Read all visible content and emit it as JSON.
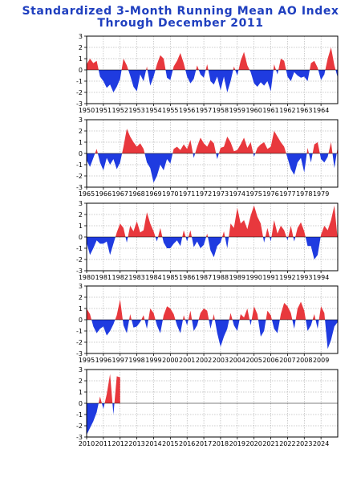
{
  "header": {
    "title_line1": "Standardized 3-Month Running Mean AO Index",
    "title_line2": "Through December 2011"
  },
  "colors": {
    "positive": "#e8383d",
    "negative": "#1f3be0",
    "title": "#1f3fbf"
  },
  "chart_data": [
    {
      "type": "area",
      "title": "Standardized 3-Month Running Mean AO Index Through December 2011",
      "xlim": [
        1950,
        1965
      ],
      "ylim": [
        -3,
        3
      ],
      "x_ticks": [
        "1950",
        "1951",
        "1952",
        "1953",
        "1954",
        "1955",
        "1956",
        "1957",
        "1958",
        "1959",
        "1960",
        "1961",
        "1962",
        "1963",
        "1964"
      ],
      "y_ticks": [
        "-3",
        "-2",
        "-1",
        "0",
        "1",
        "2",
        "3"
      ],
      "grid": true,
      "series": [
        {
          "x": [
            1950,
            1950.2,
            1950.4,
            1950.6,
            1950.8,
            1951,
            1951.2,
            1951.4,
            1951.6,
            1951.8,
            1952,
            1952.2,
            1952.4,
            1952.6,
            1952.8,
            1953,
            1953.2,
            1953.4,
            1953.6,
            1953.8,
            1954,
            1954.2,
            1954.4,
            1954.6,
            1954.8,
            1955,
            1955.2,
            1955.4,
            1955.6,
            1955.8,
            1956,
            1956.2,
            1956.4,
            1956.6,
            1956.8,
            1957,
            1957.2,
            1957.4,
            1957.6,
            1957.8,
            1958,
            1958.2,
            1958.4,
            1958.6,
            1958.8,
            1959,
            1959.2,
            1959.4,
            1959.6,
            1959.8,
            1960,
            1960.2,
            1960.4,
            1960.6,
            1960.8,
            1961,
            1961.2,
            1961.4,
            1961.6,
            1961.8,
            1962,
            1962.2,
            1962.4,
            1962.6,
            1962.8,
            1963,
            1963.2,
            1963.4,
            1963.6,
            1963.8,
            1964,
            1964.2,
            1964.4,
            1964.6,
            1964.8,
            1965
          ],
          "y": [
            0.5,
            1.0,
            0.6,
            0.8,
            -0.6,
            -1.0,
            -1.6,
            -1.3,
            -2.0,
            -1.5,
            -0.8,
            1.0,
            0.4,
            -0.5,
            -1.5,
            -1.9,
            -0.4,
            -1.0,
            0.3,
            -1.4,
            -0.6,
            0.5,
            1.3,
            1.0,
            -0.7,
            -0.9,
            0.3,
            0.8,
            1.5,
            0.6,
            -0.6,
            -1.2,
            -0.8,
            0.4,
            -0.4,
            -0.7,
            0.5,
            -1.0,
            -1.3,
            -0.6,
            -1.8,
            -0.6,
            -2.0,
            -1.0,
            0.3,
            -0.5,
            0.8,
            1.6,
            0.4,
            -0.2,
            -1.2,
            -1.5,
            -1.1,
            -1.4,
            -1.0,
            -1.9,
            0.5,
            -0.4,
            1.0,
            0.8,
            -0.6,
            -1.0,
            -0.2,
            -0.5,
            -0.7,
            -0.6,
            -1.0,
            0.6,
            0.8,
            0.2,
            -0.9,
            -0.4,
            1.0,
            2.0,
            0.4,
            -0.7
          ]
        }
      ]
    },
    {
      "type": "area",
      "xlim": [
        1965,
        1980
      ],
      "ylim": [
        -3,
        3
      ],
      "x_ticks": [
        "1965",
        "1966",
        "1967",
        "1968",
        "1969",
        "1970",
        "1971",
        "1972",
        "1973",
        "1974",
        "1975",
        "1976",
        "1977",
        "1978",
        "1979"
      ],
      "y_ticks": [
        "-3",
        "-2",
        "-1",
        "0",
        "1",
        "2",
        "3"
      ],
      "grid": true,
      "series": [
        {
          "x": [
            1965,
            1965.2,
            1965.4,
            1965.6,
            1965.8,
            1966,
            1966.2,
            1966.4,
            1966.6,
            1966.8,
            1967,
            1967.2,
            1967.4,
            1967.6,
            1967.8,
            1968,
            1968.2,
            1968.4,
            1968.6,
            1968.8,
            1969,
            1969.2,
            1969.4,
            1969.6,
            1969.8,
            1970,
            1970.2,
            1970.4,
            1970.6,
            1970.8,
            1971,
            1971.2,
            1971.4,
            1971.6,
            1971.8,
            1972,
            1972.2,
            1972.4,
            1972.6,
            1972.8,
            1973,
            1973.2,
            1973.4,
            1973.6,
            1973.8,
            1974,
            1974.2,
            1974.4,
            1974.6,
            1974.8,
            1975,
            1975.2,
            1975.4,
            1975.6,
            1975.8,
            1976,
            1976.2,
            1976.4,
            1976.6,
            1976.8,
            1977,
            1977.2,
            1977.4,
            1977.6,
            1977.8,
            1978,
            1978.2,
            1978.4,
            1978.6,
            1978.8,
            1979,
            1979.2,
            1979.4,
            1979.6,
            1979.8,
            1980
          ],
          "y": [
            -0.6,
            -1.2,
            -0.4,
            0.4,
            -0.8,
            -1.5,
            -0.4,
            -1.0,
            -0.5,
            -1.4,
            -0.8,
            0.6,
            2.2,
            1.5,
            1.0,
            0.6,
            0.9,
            0.4,
            -0.8,
            -1.3,
            -2.6,
            -2.0,
            -1.0,
            -1.5,
            -0.5,
            -0.9,
            0.4,
            0.6,
            0.3,
            0.8,
            0.4,
            1.2,
            -0.4,
            0.6,
            1.4,
            0.9,
            0.6,
            1.2,
            0.9,
            -0.5,
            0.5,
            0.6,
            1.5,
            1.0,
            0.2,
            0.3,
            0.8,
            1.4,
            0.5,
            1.0,
            -0.3,
            0.5,
            0.8,
            1.0,
            0.4,
            0.6,
            2.0,
            1.5,
            1.0,
            0.6,
            -0.4,
            -1.4,
            -1.9,
            -0.8,
            -0.4,
            -1.7,
            0.5,
            -0.8,
            0.8,
            1.0,
            -0.5,
            -0.8,
            -0.3,
            1.0,
            -1.3,
            0.6
          ]
        }
      ]
    },
    {
      "type": "area",
      "xlim": [
        1980,
        1995
      ],
      "ylim": [
        -3,
        3
      ],
      "x_ticks": [
        "1980",
        "1981",
        "1982",
        "1983",
        "1984",
        "1985",
        "1986",
        "1987",
        "1988",
        "1989",
        "1990",
        "1991",
        "1992",
        "1993",
        "1994"
      ],
      "y_ticks": [
        "-3",
        "-2",
        "-1",
        "0",
        "1",
        "2",
        "3"
      ],
      "grid": true,
      "series": [
        {
          "x": [
            1980,
            1980.2,
            1980.4,
            1980.6,
            1980.8,
            1981,
            1981.2,
            1981.4,
            1981.6,
            1981.8,
            1982,
            1982.2,
            1982.4,
            1982.6,
            1982.8,
            1983,
            1983.2,
            1983.4,
            1983.6,
            1983.8,
            1984,
            1984.2,
            1984.4,
            1984.6,
            1984.8,
            1985,
            1985.2,
            1985.4,
            1985.6,
            1985.8,
            1986,
            1986.2,
            1986.4,
            1986.6,
            1986.8,
            1987,
            1987.2,
            1987.4,
            1987.6,
            1987.8,
            1988,
            1988.2,
            1988.4,
            1988.6,
            1988.8,
            1989,
            1989.2,
            1989.4,
            1989.6,
            1989.8,
            1990,
            1990.2,
            1990.4,
            1990.6,
            1990.8,
            1991,
            1991.2,
            1991.4,
            1991.6,
            1991.8,
            1992,
            1992.2,
            1992.4,
            1992.6,
            1992.8,
            1993,
            1993.2,
            1993.4,
            1993.6,
            1993.8,
            1994,
            1994.2,
            1994.4,
            1994.6,
            1994.8,
            1995
          ],
          "y": [
            -0.5,
            -1.6,
            -1.0,
            -0.3,
            -0.6,
            -0.6,
            -0.4,
            -1.6,
            -0.6,
            0.4,
            1.2,
            0.8,
            -0.5,
            1.0,
            0.5,
            1.4,
            0.4,
            0.6,
            2.2,
            1.2,
            0.5,
            -0.4,
            0.8,
            -0.5,
            -1.0,
            -1.0,
            -0.6,
            -0.3,
            -0.8,
            0.6,
            -0.4,
            0.6,
            -0.9,
            -0.4,
            -1.0,
            -0.7,
            0.3,
            -1.2,
            -1.8,
            -0.8,
            -0.5,
            0.5,
            -1.0,
            1.2,
            0.8,
            2.6,
            1.2,
            1.5,
            0.7,
            1.9,
            2.8,
            1.8,
            1.2,
            -0.5,
            0.8,
            -0.4,
            1.5,
            0.3,
            1.0,
            0.6,
            -0.3,
            1.0,
            -0.4,
            0.8,
            1.3,
            0.5,
            -0.8,
            -0.8,
            -2.0,
            -1.6,
            0.2,
            1.0,
            0.6,
            1.5,
            2.8,
            -0.3
          ]
        }
      ]
    },
    {
      "type": "area",
      "xlim": [
        1995,
        2010
      ],
      "ylim": [
        -3,
        3
      ],
      "x_ticks": [
        "1995",
        "1996",
        "1997",
        "1998",
        "1999",
        "2000",
        "2001",
        "2002",
        "2003",
        "2004",
        "2005",
        "2006",
        "2007",
        "2008",
        "2009"
      ],
      "y_ticks": [
        "-3",
        "-2",
        "-1",
        "0",
        "1",
        "2",
        "3"
      ],
      "grid": true,
      "series": [
        {
          "x": [
            1995,
            1995.2,
            1995.4,
            1995.6,
            1995.8,
            1996,
            1996.2,
            1996.4,
            1996.6,
            1996.8,
            1997,
            1997.2,
            1997.4,
            1997.6,
            1997.8,
            1998,
            1998.2,
            1998.4,
            1998.6,
            1998.8,
            1999,
            1999.2,
            1999.4,
            1999.6,
            1999.8,
            2000,
            2000.2,
            2000.4,
            2000.6,
            2000.8,
            2001,
            2001.2,
            2001.4,
            2001.6,
            2001.8,
            2002,
            2002.2,
            2002.4,
            2002.6,
            2002.8,
            2003,
            2003.2,
            2003.4,
            2003.6,
            2003.8,
            2004,
            2004.2,
            2004.4,
            2004.6,
            2004.8,
            2005,
            2005.2,
            2005.4,
            2005.6,
            2005.8,
            2006,
            2006.2,
            2006.4,
            2006.6,
            2006.8,
            2007,
            2007.2,
            2007.4,
            2007.6,
            2007.8,
            2008,
            2008.2,
            2008.4,
            2008.6,
            2008.8,
            2009,
            2009.2,
            2009.4,
            2009.6,
            2009.8,
            2010
          ],
          "y": [
            1.0,
            0.5,
            -0.6,
            -1.2,
            -0.8,
            -0.6,
            -1.4,
            -1.0,
            -0.4,
            0.4,
            1.8,
            -0.5,
            -1.2,
            0.5,
            -0.7,
            -0.6,
            -0.2,
            0.4,
            -0.8,
            1.0,
            0.6,
            -0.5,
            -1.2,
            0.4,
            1.2,
            1.0,
            0.5,
            -0.5,
            -1.2,
            0.4,
            -0.5,
            0.8,
            -1.0,
            -0.5,
            0.6,
            1.0,
            0.8,
            -0.8,
            0.5,
            -1.2,
            -2.4,
            -1.5,
            -0.8,
            0.6,
            -0.5,
            -1.0,
            0.5,
            0.2,
            1.0,
            -0.5,
            1.2,
            0.5,
            -1.5,
            -1.0,
            0.8,
            0.4,
            -0.8,
            -1.2,
            0.5,
            1.5,
            1.2,
            0.6,
            -0.8,
            1.0,
            1.6,
            0.8,
            -1.0,
            -0.5,
            0.5,
            -0.8,
            1.2,
            0.6,
            -2.6,
            -1.8,
            -0.6,
            -0.2
          ]
        }
      ]
    },
    {
      "type": "area",
      "xlim": [
        2010,
        2025
      ],
      "ylim": [
        -3,
        3
      ],
      "x_ticks": [
        "2010",
        "2011",
        "2012",
        "2013",
        "2014",
        "2015",
        "2016",
        "2017",
        "2018",
        "2019",
        "2020",
        "2021",
        "2022",
        "2023",
        "2024"
      ],
      "y_ticks": [
        "-3",
        "-2",
        "-1",
        "0",
        "1",
        "2",
        "3"
      ],
      "grid": true,
      "series": [
        {
          "x": [
            2010,
            2010.2,
            2010.4,
            2010.6,
            2010.8,
            2011,
            2011.2,
            2011.4,
            2011.6,
            2011.8,
            2012
          ],
          "y": [
            -2.8,
            -2.2,
            -1.6,
            -0.8,
            0.6,
            -0.5,
            0.8,
            2.6,
            -1.0,
            2.4,
            2.3
          ]
        }
      ]
    }
  ]
}
